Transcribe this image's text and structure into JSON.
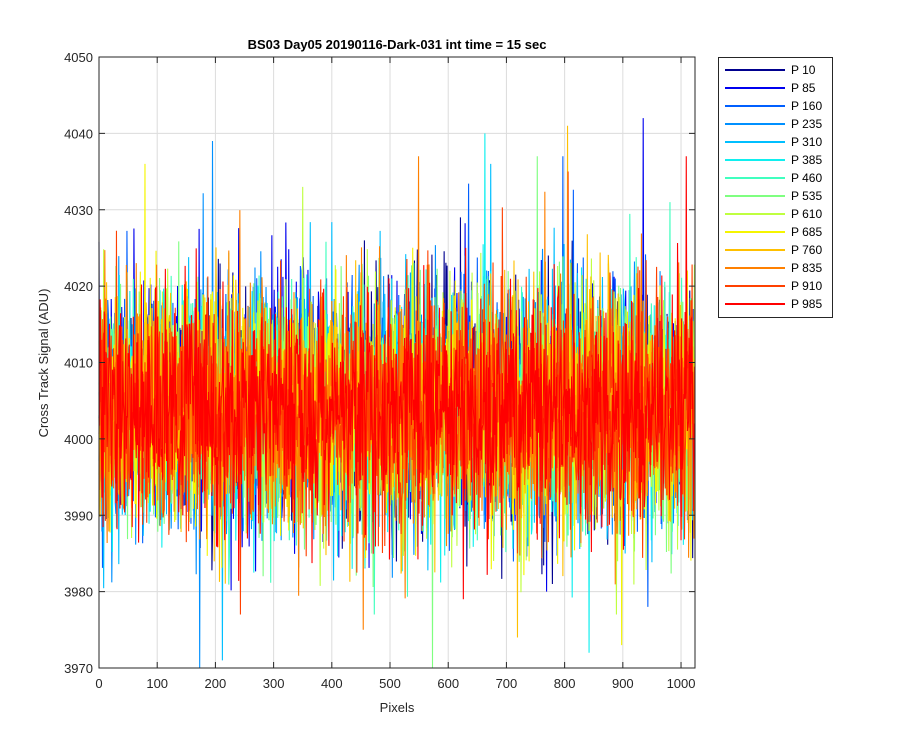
{
  "chart_data": {
    "type": "line",
    "title": "BS03 Day05 20190116-Dark-031 int time = 15 sec",
    "xlabel": "Pixels",
    "ylabel": "Cross Track Signal (ADU)",
    "xlim": [
      0,
      1024
    ],
    "ylim": [
      3970,
      4050
    ],
    "xticks": [
      0,
      100,
      200,
      300,
      400,
      500,
      600,
      700,
      800,
      900,
      1000
    ],
    "yticks": [
      3970,
      3980,
      3990,
      4000,
      4010,
      4020,
      4030,
      4040,
      4050
    ],
    "grid": true,
    "legend_position": "outside-top-right",
    "series": [
      {
        "name": "P 10",
        "color": "#00008f",
        "approx_mean": 4005,
        "approx_min": 3981,
        "approx_max": 4029
      },
      {
        "name": "P 85",
        "color": "#0000ef",
        "approx_mean": 4005,
        "approx_min": 3980,
        "approx_max": 4042
      },
      {
        "name": "P 160",
        "color": "#005fff",
        "approx_mean": 4004,
        "approx_min": 3978,
        "approx_max": 4037
      },
      {
        "name": "P 235",
        "color": "#0090ff",
        "approx_mean": 4004,
        "approx_min": 3970,
        "approx_max": 4039
      },
      {
        "name": "P 310",
        "color": "#00bfff",
        "approx_mean": 4004,
        "approx_min": 3971,
        "approx_max": 4036
      },
      {
        "name": "P 385",
        "color": "#10efef",
        "approx_mean": 4004,
        "approx_min": 3972,
        "approx_max": 4040
      },
      {
        "name": "P 460",
        "color": "#40ffbf",
        "approx_mean": 4004,
        "approx_min": 3977,
        "approx_max": 4031
      },
      {
        "name": "P 535",
        "color": "#7fff80",
        "approx_mean": 4004,
        "approx_min": 3970,
        "approx_max": 4037
      },
      {
        "name": "P 610",
        "color": "#bfff40",
        "approx_mean": 4004,
        "approx_min": 3977,
        "approx_max": 4033
      },
      {
        "name": "P 685",
        "color": "#f5f500",
        "approx_mean": 4004,
        "approx_min": 3973,
        "approx_max": 4036
      },
      {
        "name": "P 760",
        "color": "#ffc000",
        "approx_mean": 4004,
        "approx_min": 3974,
        "approx_max": 4041
      },
      {
        "name": "P 835",
        "color": "#ff8000",
        "approx_mean": 4004,
        "approx_min": 3975,
        "approx_max": 4037
      },
      {
        "name": "P 910",
        "color": "#ff4000",
        "approx_mean": 4004,
        "approx_min": 3977,
        "approx_max": 4035
      },
      {
        "name": "P 985",
        "color": "#ff0000",
        "approx_mean": 4004,
        "approx_min": 3979,
        "approx_max": 4037
      }
    ]
  }
}
